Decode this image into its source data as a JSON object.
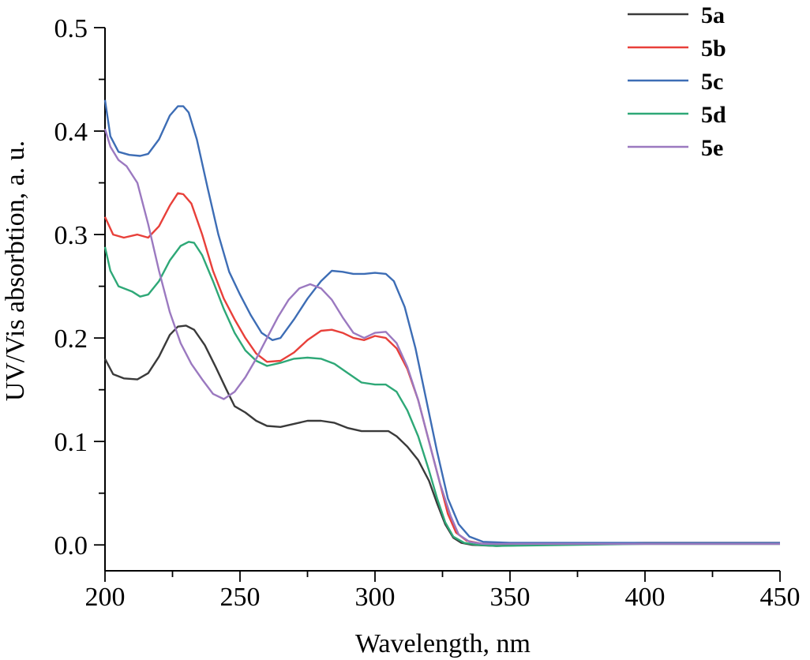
{
  "chart_data": {
    "type": "line",
    "title": "",
    "xlabel": "Wavelength, nm",
    "ylabel": "UV/Vis absorbtion, a. u.",
    "xlim": [
      200,
      450
    ],
    "ylim": [
      -0.025,
      0.5
    ],
    "x_ticks": [
      200,
      250,
      300,
      350,
      400,
      450
    ],
    "x_tick_labels": [
      "200",
      "250",
      "300",
      "350",
      "400",
      "450"
    ],
    "y_ticks": [
      0.0,
      0.1,
      0.2,
      0.3,
      0.4,
      0.5
    ],
    "y_tick_labels": [
      "0.0",
      "0.1",
      "0.2",
      "0.3",
      "0.4",
      "0.5"
    ],
    "grid": false,
    "legend": "top-right",
    "series": [
      {
        "name": "5a",
        "color": "#3a3a3a",
        "points": [
          [
            200,
            0.18
          ],
          [
            203,
            0.165
          ],
          [
            207,
            0.161
          ],
          [
            212,
            0.16
          ],
          [
            216,
            0.166
          ],
          [
            220,
            0.182
          ],
          [
            224,
            0.203
          ],
          [
            227,
            0.211
          ],
          [
            230,
            0.212
          ],
          [
            233,
            0.208
          ],
          [
            237,
            0.193
          ],
          [
            241,
            0.172
          ],
          [
            245,
            0.15
          ],
          [
            248,
            0.134
          ],
          [
            252,
            0.128
          ],
          [
            256,
            0.12
          ],
          [
            260,
            0.115
          ],
          [
            265,
            0.114
          ],
          [
            270,
            0.117
          ],
          [
            275,
            0.12
          ],
          [
            280,
            0.12
          ],
          [
            285,
            0.118
          ],
          [
            290,
            0.113
          ],
          [
            295,
            0.11
          ],
          [
            300,
            0.11
          ],
          [
            305,
            0.11
          ],
          [
            308,
            0.105
          ],
          [
            312,
            0.095
          ],
          [
            316,
            0.082
          ],
          [
            320,
            0.062
          ],
          [
            323,
            0.04
          ],
          [
            326,
            0.02
          ],
          [
            329,
            0.007
          ],
          [
            332,
            0.002
          ],
          [
            336,
            0.0
          ],
          [
            345,
            -0.001
          ],
          [
            360,
            0.0
          ],
          [
            380,
            0.001
          ],
          [
            400,
            0.001
          ],
          [
            450,
            0.001
          ]
        ]
      },
      {
        "name": "5b",
        "color": "#e8403a",
        "points": [
          [
            200,
            0.317
          ],
          [
            203,
            0.3
          ],
          [
            207,
            0.297
          ],
          [
            212,
            0.3
          ],
          [
            216,
            0.297
          ],
          [
            220,
            0.308
          ],
          [
            224,
            0.328
          ],
          [
            227,
            0.34
          ],
          [
            229,
            0.339
          ],
          [
            232,
            0.33
          ],
          [
            236,
            0.3
          ],
          [
            240,
            0.265
          ],
          [
            244,
            0.238
          ],
          [
            248,
            0.218
          ],
          [
            252,
            0.2
          ],
          [
            256,
            0.185
          ],
          [
            260,
            0.177
          ],
          [
            265,
            0.178
          ],
          [
            270,
            0.186
          ],
          [
            275,
            0.198
          ],
          [
            280,
            0.207
          ],
          [
            284,
            0.208
          ],
          [
            288,
            0.205
          ],
          [
            292,
            0.2
          ],
          [
            296,
            0.198
          ],
          [
            300,
            0.202
          ],
          [
            304,
            0.2
          ],
          [
            308,
            0.19
          ],
          [
            312,
            0.17
          ],
          [
            316,
            0.14
          ],
          [
            320,
            0.1
          ],
          [
            324,
            0.06
          ],
          [
            327,
            0.03
          ],
          [
            330,
            0.012
          ],
          [
            334,
            0.004
          ],
          [
            340,
            0.001
          ],
          [
            360,
            0.001
          ],
          [
            400,
            0.002
          ],
          [
            450,
            0.002
          ]
        ]
      },
      {
        "name": "5c",
        "color": "#3d6db5",
        "points": [
          [
            200,
            0.43
          ],
          [
            202,
            0.395
          ],
          [
            205,
            0.38
          ],
          [
            209,
            0.377
          ],
          [
            213,
            0.376
          ],
          [
            216,
            0.378
          ],
          [
            220,
            0.392
          ],
          [
            224,
            0.415
          ],
          [
            227,
            0.424
          ],
          [
            229,
            0.424
          ],
          [
            231,
            0.418
          ],
          [
            234,
            0.392
          ],
          [
            238,
            0.345
          ],
          [
            242,
            0.3
          ],
          [
            246,
            0.264
          ],
          [
            250,
            0.242
          ],
          [
            254,
            0.222
          ],
          [
            258,
            0.205
          ],
          [
            262,
            0.198
          ],
          [
            265,
            0.2
          ],
          [
            270,
            0.218
          ],
          [
            275,
            0.238
          ],
          [
            280,
            0.255
          ],
          [
            284,
            0.265
          ],
          [
            288,
            0.264
          ],
          [
            292,
            0.262
          ],
          [
            296,
            0.262
          ],
          [
            300,
            0.263
          ],
          [
            304,
            0.262
          ],
          [
            307,
            0.255
          ],
          [
            311,
            0.23
          ],
          [
            315,
            0.19
          ],
          [
            319,
            0.14
          ],
          [
            323,
            0.09
          ],
          [
            327,
            0.045
          ],
          [
            331,
            0.02
          ],
          [
            335,
            0.008
          ],
          [
            340,
            0.003
          ],
          [
            350,
            0.002
          ],
          [
            400,
            0.002
          ],
          [
            450,
            0.002
          ]
        ]
      },
      {
        "name": "5d",
        "color": "#2ea877",
        "points": [
          [
            200,
            0.288
          ],
          [
            202,
            0.265
          ],
          [
            205,
            0.25
          ],
          [
            210,
            0.245
          ],
          [
            213,
            0.24
          ],
          [
            216,
            0.242
          ],
          [
            220,
            0.255
          ],
          [
            224,
            0.275
          ],
          [
            228,
            0.289
          ],
          [
            231,
            0.293
          ],
          [
            233,
            0.292
          ],
          [
            236,
            0.28
          ],
          [
            240,
            0.255
          ],
          [
            244,
            0.228
          ],
          [
            248,
            0.205
          ],
          [
            252,
            0.188
          ],
          [
            256,
            0.178
          ],
          [
            260,
            0.173
          ],
          [
            265,
            0.176
          ],
          [
            270,
            0.18
          ],
          [
            275,
            0.181
          ],
          [
            280,
            0.18
          ],
          [
            285,
            0.175
          ],
          [
            290,
            0.166
          ],
          [
            295,
            0.157
          ],
          [
            300,
            0.155
          ],
          [
            304,
            0.155
          ],
          [
            308,
            0.148
          ],
          [
            312,
            0.13
          ],
          [
            316,
            0.105
          ],
          [
            320,
            0.072
          ],
          [
            323,
            0.045
          ],
          [
            326,
            0.022
          ],
          [
            329,
            0.008
          ],
          [
            333,
            0.002
          ],
          [
            338,
            0.0
          ],
          [
            345,
            -0.001
          ],
          [
            400,
            0.001
          ],
          [
            450,
            0.001
          ]
        ]
      },
      {
        "name": "5e",
        "color": "#9b79c0",
        "points": [
          [
            200,
            0.402
          ],
          [
            202,
            0.385
          ],
          [
            205,
            0.372
          ],
          [
            208,
            0.366
          ],
          [
            212,
            0.35
          ],
          [
            216,
            0.31
          ],
          [
            220,
            0.265
          ],
          [
            224,
            0.225
          ],
          [
            228,
            0.195
          ],
          [
            232,
            0.175
          ],
          [
            236,
            0.16
          ],
          [
            240,
            0.146
          ],
          [
            244,
            0.141
          ],
          [
            248,
            0.148
          ],
          [
            252,
            0.162
          ],
          [
            256,
            0.18
          ],
          [
            260,
            0.2
          ],
          [
            264,
            0.22
          ],
          [
            268,
            0.237
          ],
          [
            272,
            0.248
          ],
          [
            276,
            0.252
          ],
          [
            280,
            0.248
          ],
          [
            284,
            0.237
          ],
          [
            288,
            0.22
          ],
          [
            292,
            0.205
          ],
          [
            296,
            0.2
          ],
          [
            300,
            0.205
          ],
          [
            304,
            0.206
          ],
          [
            308,
            0.195
          ],
          [
            312,
            0.172
          ],
          [
            316,
            0.14
          ],
          [
            320,
            0.1
          ],
          [
            324,
            0.06
          ],
          [
            328,
            0.028
          ],
          [
            331,
            0.01
          ],
          [
            335,
            0.003
          ],
          [
            340,
            0.001
          ],
          [
            400,
            0.001
          ],
          [
            450,
            0.001
          ]
        ]
      }
    ]
  }
}
